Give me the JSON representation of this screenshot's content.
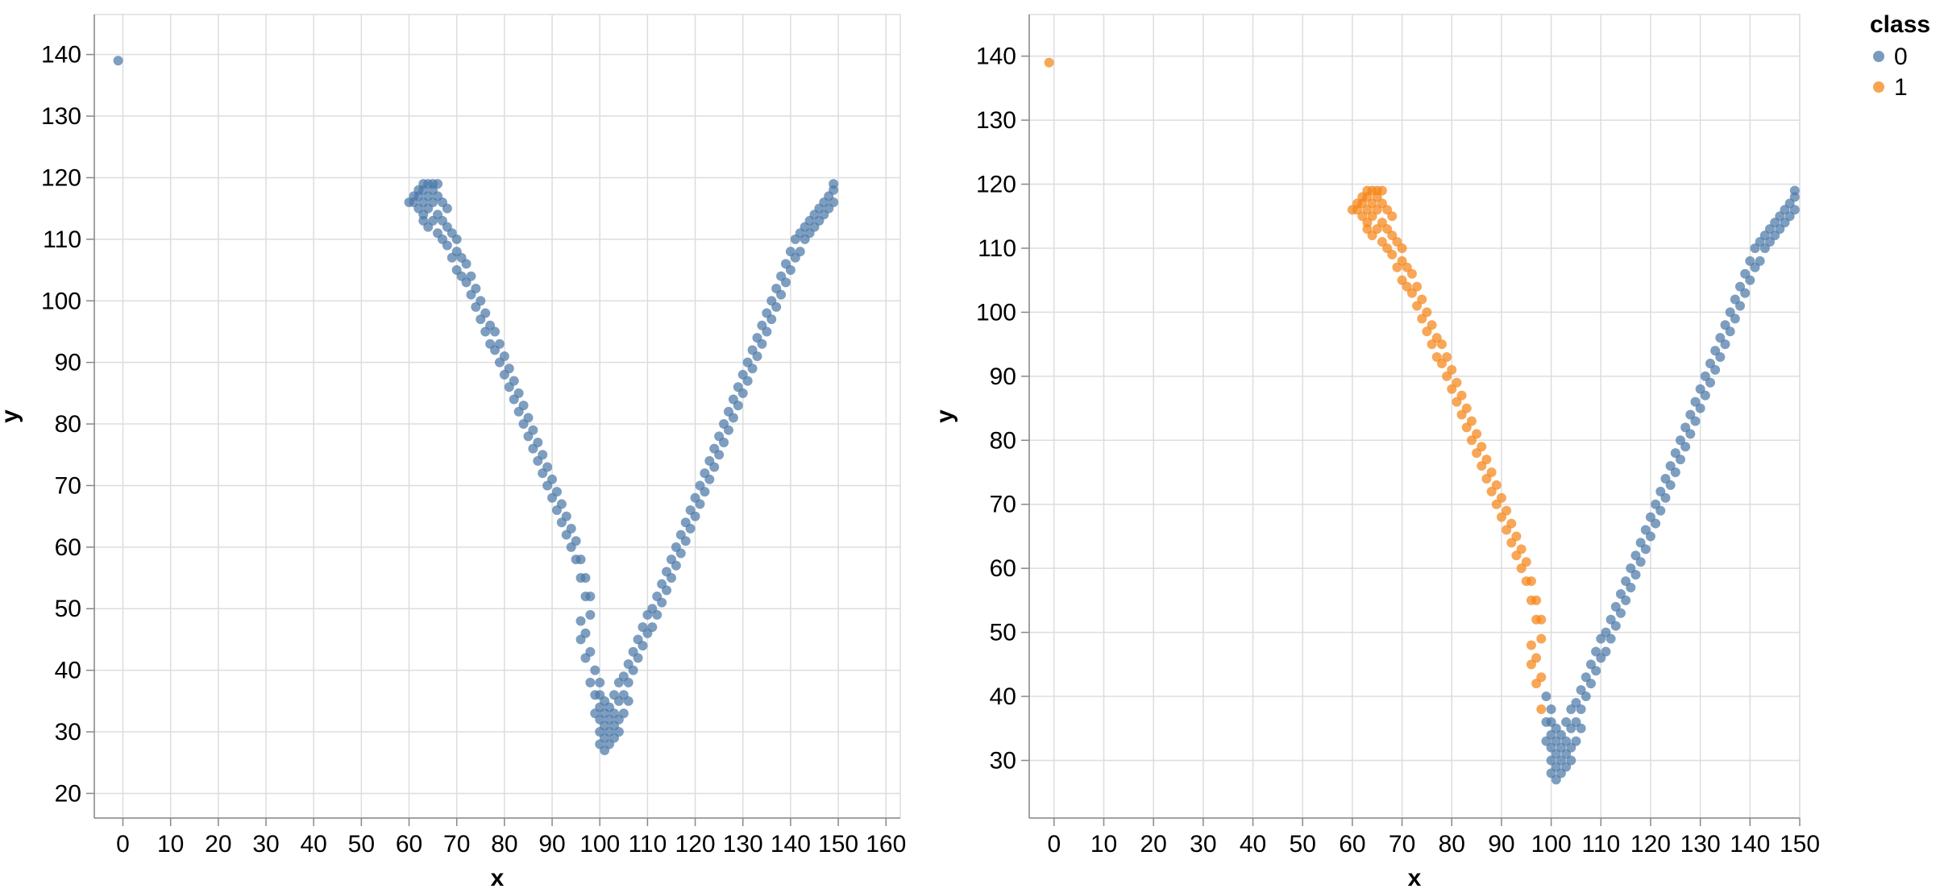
{
  "chart_data": [
    {
      "type": "scatter",
      "title": "",
      "xlabel": "x",
      "ylabel": "y",
      "xlim": [
        -6,
        163
      ],
      "ylim": [
        16,
        146.5
      ],
      "x_ticks": [
        0,
        10,
        20,
        30,
        40,
        50,
        60,
        70,
        80,
        90,
        100,
        110,
        120,
        130,
        140,
        150,
        160
      ],
      "y_ticks": [
        20,
        30,
        40,
        50,
        60,
        70,
        80,
        90,
        100,
        110,
        120,
        130,
        140
      ],
      "grid": true,
      "colored_by_class": false,
      "point_color": "#4c78a8"
    },
    {
      "type": "scatter",
      "title": "",
      "xlabel": "x",
      "ylabel": "y",
      "xlim": [
        -5,
        150
      ],
      "ylim": [
        21,
        146.5
      ],
      "x_ticks": [
        0,
        10,
        20,
        30,
        40,
        50,
        60,
        70,
        80,
        90,
        100,
        110,
        120,
        130,
        140,
        150
      ],
      "y_ticks": [
        30,
        40,
        50,
        60,
        70,
        80,
        90,
        100,
        110,
        120,
        130,
        140
      ],
      "grid": true,
      "colored_by_class": true,
      "legend": {
        "title": "class",
        "position": "top-right",
        "entries": [
          {
            "label": "0",
            "color": "#4c78a8"
          },
          {
            "label": "1",
            "color": "#f58518"
          }
        ]
      }
    }
  ],
  "points": {
    "outlier": [
      -1,
      139
    ],
    "left_arm": [
      [
        60,
        116
      ],
      [
        61,
        116
      ],
      [
        61,
        117
      ],
      [
        62,
        115
      ],
      [
        62,
        117
      ],
      [
        62,
        118
      ],
      [
        63,
        113
      ],
      [
        63,
        114
      ],
      [
        63,
        116
      ],
      [
        63,
        118
      ],
      [
        63,
        119
      ],
      [
        64,
        112
      ],
      [
        64,
        115
      ],
      [
        64,
        117
      ],
      [
        64,
        119
      ],
      [
        65,
        113
      ],
      [
        65,
        116
      ],
      [
        65,
        118
      ],
      [
        65,
        119
      ],
      [
        66,
        111
      ],
      [
        66,
        114
      ],
      [
        66,
        117
      ],
      [
        66,
        119
      ],
      [
        67,
        110
      ],
      [
        67,
        113
      ],
      [
        67,
        116
      ],
      [
        68,
        109
      ],
      [
        68,
        112
      ],
      [
        68,
        115
      ],
      [
        69,
        107
      ],
      [
        69,
        111
      ],
      [
        70,
        105
      ],
      [
        70,
        108
      ],
      [
        70,
        110
      ],
      [
        71,
        104
      ],
      [
        71,
        107
      ],
      [
        72,
        103
      ],
      [
        72,
        106
      ],
      [
        73,
        101
      ],
      [
        73,
        104
      ],
      [
        74,
        99
      ],
      [
        74,
        102
      ],
      [
        75,
        97
      ],
      [
        75,
        100
      ],
      [
        76,
        95
      ],
      [
        76,
        98
      ],
      [
        77,
        93
      ],
      [
        77,
        96
      ],
      [
        78,
        92
      ],
      [
        78,
        95
      ],
      [
        79,
        90
      ],
      [
        79,
        93
      ],
      [
        80,
        88
      ],
      [
        80,
        91
      ],
      [
        81,
        86
      ],
      [
        81,
        89
      ],
      [
        82,
        84
      ],
      [
        82,
        87
      ],
      [
        83,
        82
      ],
      [
        83,
        85
      ],
      [
        84,
        80
      ],
      [
        84,
        83
      ],
      [
        85,
        78
      ],
      [
        85,
        81
      ],
      [
        86,
        76
      ],
      [
        86,
        79
      ],
      [
        87,
        74
      ],
      [
        87,
        77
      ],
      [
        88,
        72
      ],
      [
        88,
        75
      ],
      [
        89,
        70
      ],
      [
        89,
        73
      ],
      [
        90,
        68
      ],
      [
        90,
        71
      ],
      [
        91,
        66
      ],
      [
        91,
        69
      ],
      [
        92,
        64
      ],
      [
        92,
        67
      ],
      [
        93,
        62
      ],
      [
        93,
        65
      ],
      [
        94,
        60
      ],
      [
        94,
        63
      ],
      [
        95,
        58
      ],
      [
        95,
        61
      ],
      [
        96,
        55
      ],
      [
        96,
        58
      ],
      [
        97,
        52
      ],
      [
        97,
        55
      ],
      [
        98,
        49
      ],
      [
        98,
        52
      ]
    ],
    "bottom": [
      [
        96,
        45
      ],
      [
        96,
        48
      ],
      [
        97,
        42
      ],
      [
        97,
        46
      ],
      [
        98,
        38
      ],
      [
        98,
        43
      ],
      [
        99,
        33
      ],
      [
        99,
        36
      ],
      [
        99,
        40
      ],
      [
        100,
        28
      ],
      [
        100,
        30
      ],
      [
        100,
        32
      ],
      [
        100,
        34
      ],
      [
        100,
        36
      ],
      [
        100,
        38
      ],
      [
        101,
        27
      ],
      [
        101,
        29
      ],
      [
        101,
        31
      ],
      [
        101,
        33
      ],
      [
        101,
        35
      ],
      [
        102,
        28
      ],
      [
        102,
        30
      ],
      [
        102,
        32
      ],
      [
        102,
        34
      ],
      [
        103,
        29
      ],
      [
        103,
        31
      ],
      [
        103,
        33
      ],
      [
        103,
        36
      ],
      [
        104,
        30
      ],
      [
        104,
        32
      ],
      [
        104,
        35
      ],
      [
        104,
        38
      ],
      [
        105,
        33
      ],
      [
        105,
        36
      ],
      [
        105,
        39
      ],
      [
        106,
        35
      ],
      [
        106,
        38
      ],
      [
        106,
        41
      ]
    ],
    "right_arm": [
      [
        107,
        40
      ],
      [
        107,
        43
      ],
      [
        108,
        42
      ],
      [
        108,
        45
      ],
      [
        109,
        44
      ],
      [
        109,
        47
      ],
      [
        110,
        46
      ],
      [
        110,
        49
      ],
      [
        111,
        47
      ],
      [
        111,
        50
      ],
      [
        112,
        49
      ],
      [
        112,
        52
      ],
      [
        113,
        51
      ],
      [
        113,
        54
      ],
      [
        114,
        53
      ],
      [
        114,
        56
      ],
      [
        115,
        55
      ],
      [
        115,
        58
      ],
      [
        116,
        57
      ],
      [
        116,
        60
      ],
      [
        117,
        59
      ],
      [
        117,
        62
      ],
      [
        118,
        61
      ],
      [
        118,
        64
      ],
      [
        119,
        63
      ],
      [
        119,
        66
      ],
      [
        120,
        65
      ],
      [
        120,
        68
      ],
      [
        121,
        67
      ],
      [
        121,
        70
      ],
      [
        122,
        69
      ],
      [
        122,
        72
      ],
      [
        123,
        71
      ],
      [
        123,
        74
      ],
      [
        124,
        73
      ],
      [
        124,
        76
      ],
      [
        125,
        75
      ],
      [
        125,
        78
      ],
      [
        126,
        77
      ],
      [
        126,
        80
      ],
      [
        127,
        79
      ],
      [
        127,
        82
      ],
      [
        128,
        81
      ],
      [
        128,
        84
      ],
      [
        129,
        83
      ],
      [
        129,
        86
      ],
      [
        130,
        85
      ],
      [
        130,
        88
      ],
      [
        131,
        87
      ],
      [
        131,
        90
      ],
      [
        132,
        89
      ],
      [
        132,
        92
      ],
      [
        133,
        91
      ],
      [
        133,
        94
      ],
      [
        134,
        93
      ],
      [
        134,
        96
      ],
      [
        135,
        95
      ],
      [
        135,
        98
      ],
      [
        136,
        97
      ],
      [
        136,
        100
      ],
      [
        137,
        99
      ],
      [
        137,
        102
      ],
      [
        138,
        101
      ],
      [
        138,
        104
      ],
      [
        139,
        103
      ],
      [
        139,
        106
      ],
      [
        140,
        105
      ],
      [
        140,
        108
      ],
      [
        141,
        107
      ],
      [
        141,
        110
      ],
      [
        142,
        108
      ],
      [
        142,
        111
      ],
      [
        143,
        110
      ],
      [
        143,
        112
      ],
      [
        144,
        111
      ],
      [
        144,
        113
      ],
      [
        145,
        112
      ],
      [
        145,
        114
      ],
      [
        146,
        113
      ],
      [
        146,
        115
      ],
      [
        147,
        114
      ],
      [
        147,
        116
      ],
      [
        148,
        115
      ],
      [
        148,
        117
      ],
      [
        149,
        116
      ],
      [
        149,
        118
      ],
      [
        149,
        119
      ]
    ]
  }
}
